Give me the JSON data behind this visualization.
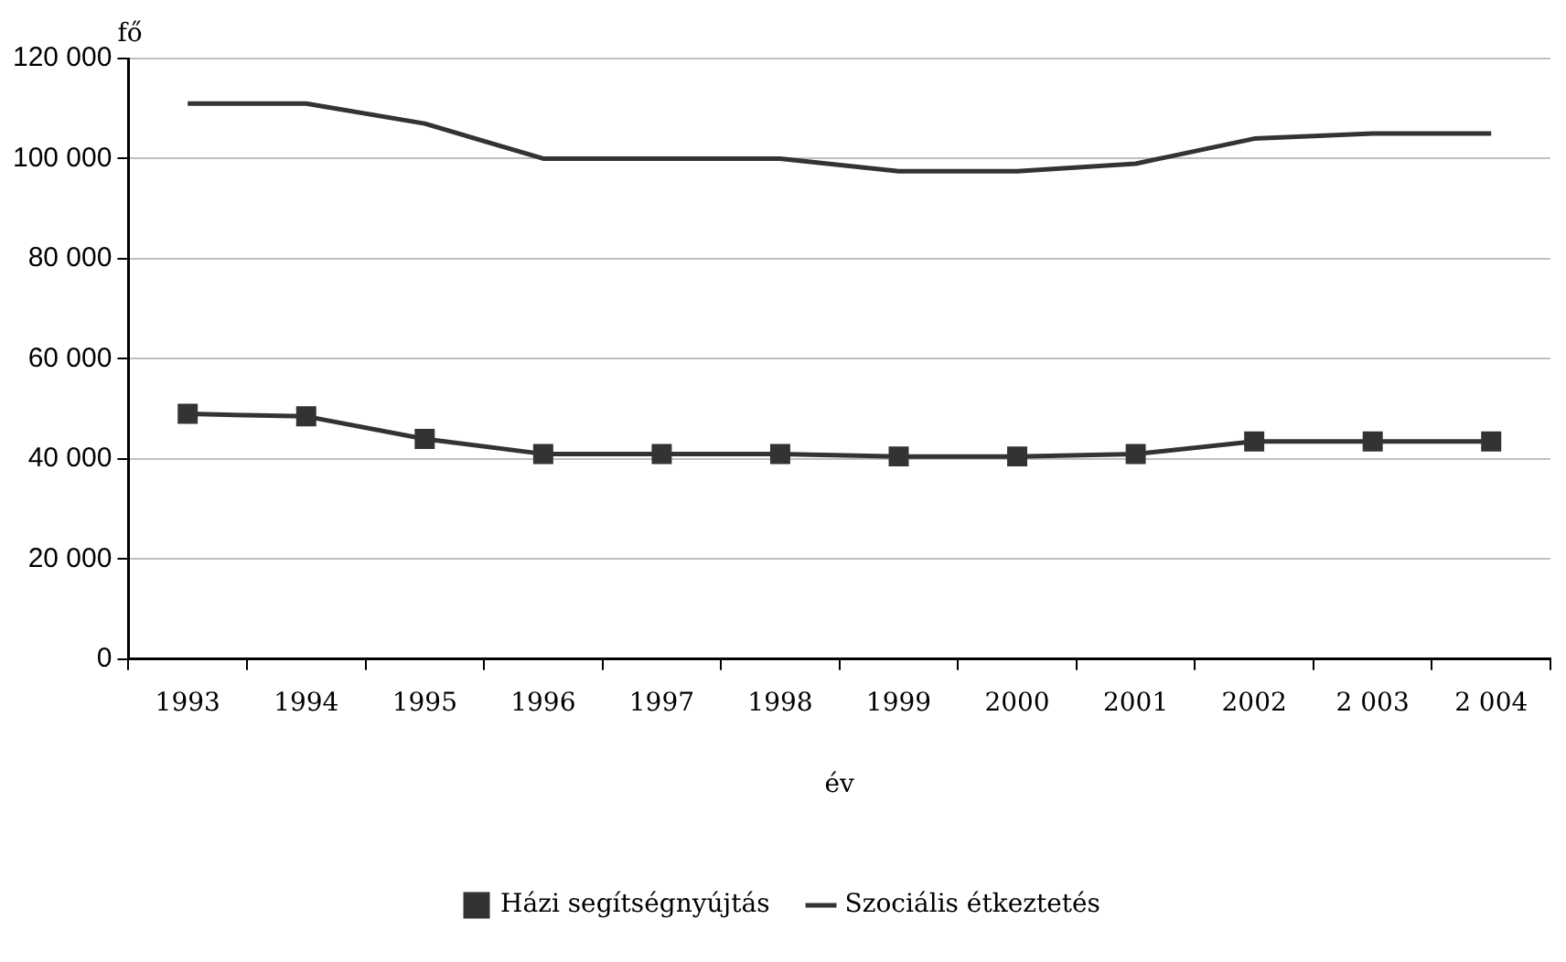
{
  "chart_data": {
    "type": "line",
    "xlabel": "év",
    "ylabel": "fő",
    "categories": [
      "1993",
      "1994",
      "1995",
      "1996",
      "1997",
      "1998",
      "1999",
      "2000",
      "2001",
      "2002",
      "2 003",
      "2 004"
    ],
    "series": [
      {
        "name": "Házi segítségnyújtás",
        "color": "#333333",
        "marker": "square",
        "values": [
          49000,
          48500,
          44000,
          41000,
          41000,
          41000,
          40500,
          40500,
          41000,
          43500,
          43500,
          43500
        ]
      },
      {
        "name": "Szociális étkeztetés",
        "color": "#333333",
        "marker": "none",
        "values": [
          111000,
          111000,
          107000,
          100000,
          100000,
          100000,
          97500,
          97500,
          99000,
          104000,
          105000,
          105000
        ]
      }
    ],
    "ylim": [
      0,
      120000
    ],
    "yticks": [
      {
        "value": 0,
        "label": "0"
      },
      {
        "value": 20000,
        "label": "20 000"
      },
      {
        "value": 40000,
        "label": "40 000"
      },
      {
        "value": 60000,
        "label": "60 000"
      },
      {
        "value": 80000,
        "label": "80 000"
      },
      {
        "value": 100000,
        "label": "100 000"
      },
      {
        "value": 120000,
        "label": "120 000"
      }
    ],
    "grid": "y",
    "legend": "bottom",
    "line_style": "solid"
  }
}
